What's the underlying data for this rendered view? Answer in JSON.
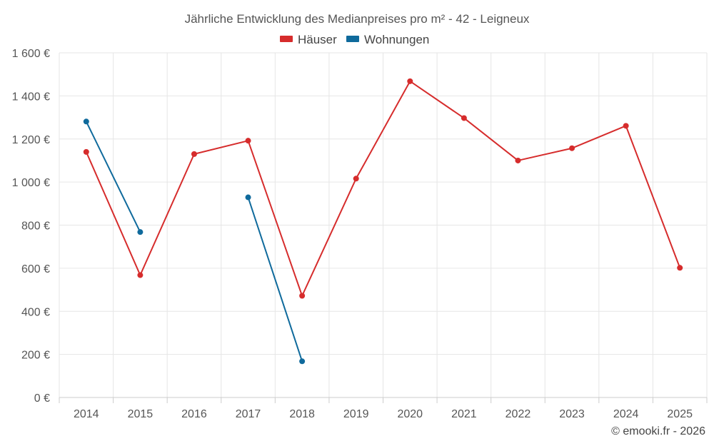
{
  "chart_data": {
    "type": "line",
    "title": "Jährliche Entwicklung des Medianpreises pro m² - 42 - Leigneux",
    "categories": [
      "2014",
      "2015",
      "2016",
      "2017",
      "2018",
      "2019",
      "2020",
      "2021",
      "2022",
      "2023",
      "2024",
      "2025"
    ],
    "y_ticks": [
      "0 €",
      "200 €",
      "400 €",
      "600 €",
      "800 €",
      "1 000 €",
      "1 200 €",
      "1 400 €",
      "1 600 €"
    ],
    "ylim": [
      0,
      1600
    ],
    "grid": true,
    "legend_position": "top-center",
    "series": [
      {
        "name": "Häuser",
        "color": "#d62c2c",
        "values": [
          1140,
          568,
          1130,
          1192,
          472,
          1016,
          1468,
          1297,
          1100,
          1157,
          1261,
          602
        ]
      },
      {
        "name": "Wohnungen",
        "color": "#0f6a9c",
        "values": [
          1281,
          768,
          null,
          929,
          168,
          null,
          null,
          null,
          null,
          null,
          null,
          null
        ]
      }
    ],
    "credit": "© emooki.fr - 2026"
  }
}
